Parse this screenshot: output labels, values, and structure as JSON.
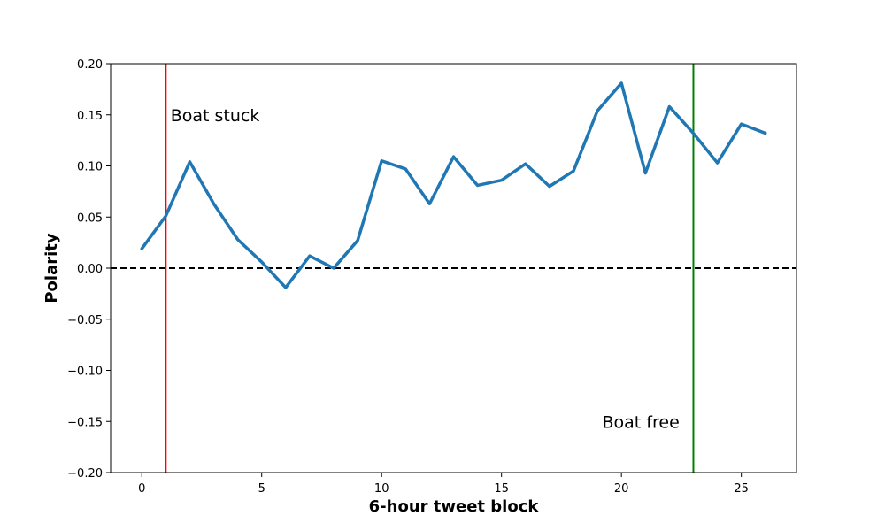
{
  "chart_data": {
    "type": "line",
    "xlabel": "6-hour tweet block",
    "ylabel": "Polarity",
    "xlim": [
      -1.3,
      27.3
    ],
    "ylim": [
      -0.2,
      0.2
    ],
    "xticks": [
      0,
      5,
      10,
      15,
      20,
      25
    ],
    "yticks": [
      -0.2,
      -0.15,
      -0.1,
      -0.05,
      0.0,
      0.05,
      0.1,
      0.15,
      0.2
    ],
    "grid": false,
    "series": [
      {
        "color": "#1f77b4",
        "x": [
          0,
          1,
          2,
          3,
          4,
          5,
          6,
          7,
          8,
          9,
          10,
          11,
          12,
          13,
          14,
          15,
          16,
          17,
          18,
          19,
          20,
          21,
          22,
          23,
          24,
          25,
          26
        ],
        "y": [
          0.019,
          0.051,
          0.104,
          0.063,
          0.028,
          0.006,
          -0.019,
          0.012,
          0.0,
          0.027,
          0.105,
          0.097,
          0.063,
          0.109,
          0.081,
          0.086,
          0.102,
          0.08,
          0.095,
          0.154,
          0.181,
          0.093,
          0.158,
          0.132,
          0.103,
          0.141,
          0.132
        ]
      }
    ],
    "hlines": [
      {
        "y": 0.0,
        "color": "#000000",
        "style": "dashed"
      }
    ],
    "vlines": [
      {
        "x": 1,
        "color": "#ff0000"
      },
      {
        "x": 23,
        "color": "#008000"
      }
    ],
    "annotations": [
      {
        "text": "Boat stuck",
        "x": 1.2,
        "y": 0.15
      },
      {
        "text": "Boat free",
        "x": 19.2,
        "y": -0.15
      }
    ]
  }
}
